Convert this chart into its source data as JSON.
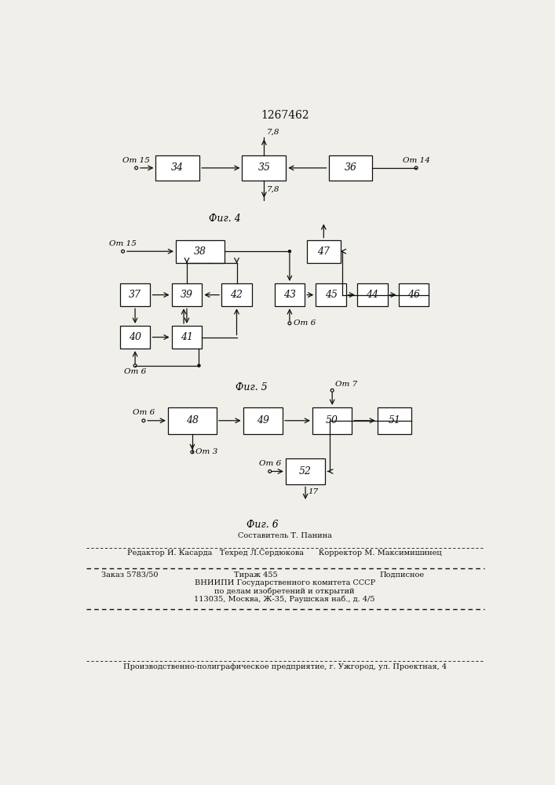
{
  "title": "1267462",
  "fig4_label": "Фиг. 4",
  "fig5_label": "Фиг. 5",
  "fig6_label": "Фиг. 6",
  "bg_color": "#f0efea",
  "box_color": "#ffffff",
  "line_color": "#111111",
  "font_size_box": 9,
  "font_size_label": 7.5,
  "footer": {
    "line1": "Составитель Т. Панина",
    "line2": "Редактор И. Касарда   Техред Л.Сердюкова      Корректор М. Максимишинец",
    "line3a": "Заказ 5783/50",
    "line3b": "Тираж 455",
    "line3c": "Подписное",
    "line4": "ВНИИПИ Государственного комитета СССР",
    "line5": "по делам изобретений и открытий",
    "line6": "113035, Москва, Ж-35, Раушская наб., д. 4/5",
    "line7": "Производственно-полиграфическое предприятие, г. Ужгород, ул. Проектная, 4"
  }
}
